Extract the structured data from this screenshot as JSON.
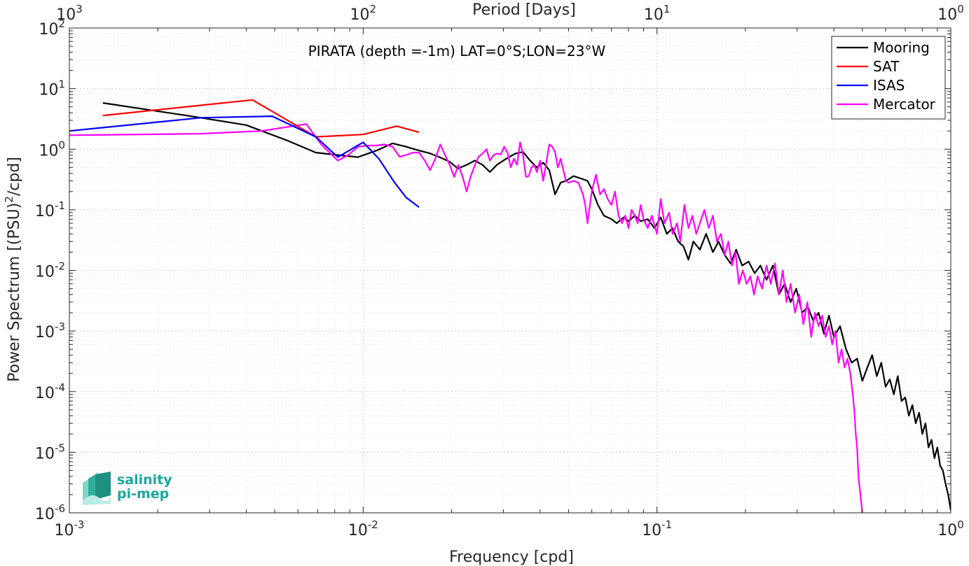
{
  "chart_data": {
    "type": "line",
    "title": "PIRATA (depth =-1m) LAT=0°S;LON=23°W",
    "xlabel": "Frequency [cpd]",
    "ylabel_main": "Power Spectrum [(PSU)",
    "ylabel_sup": "2",
    "ylabel_tail": "/cpd]",
    "top_xlabel": "Period [Days]",
    "xscale": "log",
    "yscale": "log",
    "xlim": [
      0.001,
      1
    ],
    "ylim": [
      1e-06,
      100
    ],
    "grid": true,
    "minor_grid": true,
    "legend_position": "top-right",
    "x_ticks": [
      {
        "b": "10",
        "e": "-3"
      },
      {
        "b": "10",
        "e": "-2"
      },
      {
        "b": "10",
        "e": "-1"
      },
      {
        "b": "10",
        "e": "0"
      }
    ],
    "top_ticks": [
      {
        "b": "10",
        "e": "3"
      },
      {
        "b": "10",
        "e": "2"
      },
      {
        "b": "10",
        "e": "1"
      },
      {
        "b": "10",
        "e": "0"
      }
    ],
    "y_ticks": [
      {
        "b": "10",
        "e": "-6"
      },
      {
        "b": "10",
        "e": "-5"
      },
      {
        "b": "10",
        "e": "-4"
      },
      {
        "b": "10",
        "e": "-3"
      },
      {
        "b": "10",
        "e": "-2"
      },
      {
        "b": "10",
        "e": "-1"
      },
      {
        "b": "10",
        "e": "0"
      },
      {
        "b": "10",
        "e": "1"
      },
      {
        "b": "10",
        "e": "2"
      }
    ],
    "logo": {
      "line1": "salinity",
      "line2": "pi-mep"
    },
    "series": [
      {
        "name": "Mooring",
        "color": "#000000",
        "points": [
          [
            0.0013,
            5.8
          ],
          [
            0.0027,
            3.4
          ],
          [
            0.004,
            2.5
          ],
          [
            0.0055,
            1.4
          ],
          [
            0.0069,
            0.88
          ],
          [
            0.0082,
            0.8
          ],
          [
            0.0096,
            0.74
          ],
          [
            0.0111,
            0.95
          ],
          [
            0.0126,
            1.25
          ],
          [
            0.014,
            1.1
          ],
          [
            0.0155,
            0.95
          ],
          [
            0.0168,
            0.86
          ],
          [
            0.0182,
            0.74
          ],
          [
            0.0197,
            0.62
          ],
          [
            0.021,
            0.48
          ],
          [
            0.0225,
            0.55
          ],
          [
            0.024,
            0.65
          ],
          [
            0.0255,
            0.55
          ],
          [
            0.027,
            0.42
          ],
          [
            0.0285,
            0.55
          ],
          [
            0.03,
            0.65
          ],
          [
            0.0315,
            0.75
          ],
          [
            0.033,
            0.85
          ],
          [
            0.035,
            0.9
          ],
          [
            0.037,
            0.65
          ],
          [
            0.039,
            0.5
          ],
          [
            0.041,
            0.6
          ],
          [
            0.043,
            0.45
          ],
          [
            0.045,
            0.18
          ],
          [
            0.047,
            0.28
          ],
          [
            0.049,
            0.3
          ],
          [
            0.052,
            0.36
          ],
          [
            0.055,
            0.33
          ],
          [
            0.058,
            0.3
          ],
          [
            0.06,
            0.22
          ],
          [
            0.063,
            0.12
          ],
          [
            0.066,
            0.08
          ],
          [
            0.07,
            0.07
          ],
          [
            0.073,
            0.06
          ],
          [
            0.077,
            0.075
          ],
          [
            0.08,
            0.065
          ],
          [
            0.084,
            0.08
          ],
          [
            0.088,
            0.065
          ],
          [
            0.093,
            0.07
          ],
          [
            0.098,
            0.05
          ],
          [
            0.103,
            0.075
          ],
          [
            0.108,
            0.04
          ],
          [
            0.113,
            0.05
          ],
          [
            0.118,
            0.03
          ],
          [
            0.123,
            0.025
          ],
          [
            0.128,
            0.015
          ],
          [
            0.133,
            0.03
          ],
          [
            0.14,
            0.022
          ],
          [
            0.147,
            0.04
          ],
          [
            0.155,
            0.02
          ],
          [
            0.162,
            0.03
          ],
          [
            0.17,
            0.018
          ],
          [
            0.178,
            0.013
          ],
          [
            0.186,
            0.022
          ],
          [
            0.195,
            0.012
          ],
          [
            0.205,
            0.014
          ],
          [
            0.215,
            0.009
          ],
          [
            0.225,
            0.012
          ],
          [
            0.236,
            0.007
          ],
          [
            0.248,
            0.012
          ],
          [
            0.26,
            0.004
          ],
          [
            0.272,
            0.006
          ],
          [
            0.285,
            0.003
          ],
          [
            0.298,
            0.005
          ],
          [
            0.312,
            0.002
          ],
          [
            0.326,
            0.0025
          ],
          [
            0.34,
            0.0015
          ],
          [
            0.355,
            0.002
          ],
          [
            0.37,
            0.0009
          ],
          [
            0.385,
            0.0018
          ],
          [
            0.4,
            0.0008
          ],
          [
            0.42,
            0.0012
          ],
          [
            0.44,
            0.0005
          ],
          [
            0.46,
            0.0003
          ],
          [
            0.48,
            0.00035
          ],
          [
            0.5,
            0.00015
          ],
          [
            0.52,
            0.00025
          ],
          [
            0.54,
            0.0004
          ],
          [
            0.56,
            0.00018
          ],
          [
            0.58,
            0.0003
          ],
          [
            0.6,
            0.00012
          ],
          [
            0.62,
            0.00016
          ],
          [
            0.64,
            9e-05
          ],
          [
            0.66,
            0.00018
          ],
          [
            0.68,
            7e-05
          ],
          [
            0.7,
            8e-05
          ],
          [
            0.72,
            4e-05
          ],
          [
            0.74,
            6e-05
          ],
          [
            0.76,
            3e-05
          ],
          [
            0.78,
            4.5e-05
          ],
          [
            0.8,
            2e-05
          ],
          [
            0.82,
            3e-05
          ],
          [
            0.84,
            1.2e-05
          ],
          [
            0.86,
            1.6e-05
          ],
          [
            0.88,
            8e-06
          ],
          [
            0.9,
            1.2e-05
          ],
          [
            0.92,
            6e-06
          ],
          [
            0.94,
            5e-06
          ],
          [
            0.96,
            3e-06
          ],
          [
            0.98,
            2e-06
          ],
          [
            1.0,
            1.1e-06
          ]
        ]
      },
      {
        "name": "SAT",
        "color": "#ff0000",
        "points": [
          [
            0.0013,
            3.6
          ],
          [
            0.0042,
            6.5
          ],
          [
            0.0069,
            1.6
          ],
          [
            0.01,
            1.75
          ],
          [
            0.013,
            2.4
          ],
          [
            0.0155,
            1.9
          ]
        ]
      },
      {
        "name": "ISAS",
        "color": "#0000ff",
        "points": [
          [
            0.001,
            2.0
          ],
          [
            0.0028,
            3.3
          ],
          [
            0.0049,
            3.5
          ],
          [
            0.0069,
            1.6
          ],
          [
            0.0082,
            0.74
          ],
          [
            0.01,
            1.3
          ],
          [
            0.0113,
            0.7
          ],
          [
            0.0128,
            0.28
          ],
          [
            0.014,
            0.16
          ],
          [
            0.0155,
            0.11
          ]
        ]
      },
      {
        "name": "Mercator",
        "color": "#ff00ff",
        "points": [
          [
            0.001,
            1.7
          ],
          [
            0.0028,
            1.8
          ],
          [
            0.0045,
            2.0
          ],
          [
            0.0064,
            2.6
          ],
          [
            0.0072,
            1.2
          ],
          [
            0.0082,
            0.65
          ],
          [
            0.0089,
            0.8
          ],
          [
            0.0096,
            1.1
          ],
          [
            0.0104,
            1.15
          ],
          [
            0.0111,
            1.15
          ],
          [
            0.0118,
            1.2
          ],
          [
            0.0126,
            1.1
          ],
          [
            0.0133,
            0.75
          ],
          [
            0.014,
            0.8
          ],
          [
            0.0148,
            0.88
          ],
          [
            0.0155,
            0.88
          ],
          [
            0.0162,
            0.65
          ],
          [
            0.0169,
            0.45
          ],
          [
            0.0176,
            0.7
          ],
          [
            0.0183,
            1.2
          ],
          [
            0.019,
            0.8
          ],
          [
            0.0197,
            0.55
          ],
          [
            0.0204,
            0.35
          ],
          [
            0.0211,
            0.55
          ],
          [
            0.0218,
            0.35
          ],
          [
            0.0225,
            0.2
          ],
          [
            0.0232,
            0.35
          ],
          [
            0.024,
            0.55
          ],
          [
            0.0247,
            0.75
          ],
          [
            0.0255,
            0.85
          ],
          [
            0.0263,
            1.0
          ],
          [
            0.027,
            0.65
          ],
          [
            0.0278,
            0.8
          ],
          [
            0.0286,
            0.85
          ],
          [
            0.0294,
            0.82
          ],
          [
            0.0302,
            1.1
          ],
          [
            0.031,
            0.88
          ],
          [
            0.0318,
            0.5
          ],
          [
            0.0326,
            0.7
          ],
          [
            0.0334,
            0.55
          ],
          [
            0.0342,
            1.3
          ],
          [
            0.035,
            0.8
          ],
          [
            0.0358,
            0.35
          ],
          [
            0.0366,
            0.36
          ],
          [
            0.0374,
            0.5
          ],
          [
            0.0382,
            0.55
          ],
          [
            0.039,
            0.42
          ],
          [
            0.04,
            0.65
          ],
          [
            0.041,
            0.3
          ],
          [
            0.042,
            0.6
          ],
          [
            0.043,
            1.2
          ],
          [
            0.044,
            1.1
          ],
          [
            0.045,
            0.9
          ],
          [
            0.046,
            0.5
          ],
          [
            0.047,
            0.7
          ],
          [
            0.048,
            0.45
          ],
          [
            0.049,
            0.3
          ],
          [
            0.05,
            0.28
          ],
          [
            0.052,
            0.3
          ],
          [
            0.054,
            0.28
          ],
          [
            0.056,
            0.18
          ],
          [
            0.057,
            0.12
          ],
          [
            0.058,
            0.06
          ],
          [
            0.06,
            0.2
          ],
          [
            0.062,
            0.38
          ],
          [
            0.064,
            0.18
          ],
          [
            0.066,
            0.22
          ],
          [
            0.068,
            0.15
          ],
          [
            0.07,
            0.12
          ],
          [
            0.072,
            0.2
          ],
          [
            0.074,
            0.08
          ],
          [
            0.076,
            0.06
          ],
          [
            0.078,
            0.08
          ],
          [
            0.08,
            0.05
          ],
          [
            0.082,
            0.1
          ],
          [
            0.084,
            0.08
          ],
          [
            0.086,
            0.06
          ],
          [
            0.088,
            0.12
          ],
          [
            0.09,
            0.07
          ],
          [
            0.093,
            0.05
          ],
          [
            0.096,
            0.08
          ],
          [
            0.1,
            0.04
          ],
          [
            0.103,
            0.15
          ],
          [
            0.106,
            0.06
          ],
          [
            0.11,
            0.09
          ],
          [
            0.113,
            0.04
          ],
          [
            0.117,
            0.06
          ],
          [
            0.12,
            0.03
          ],
          [
            0.124,
            0.12
          ],
          [
            0.128,
            0.05
          ],
          [
            0.132,
            0.08
          ],
          [
            0.136,
            0.04
          ],
          [
            0.14,
            0.06
          ],
          [
            0.145,
            0.1
          ],
          [
            0.15,
            0.05
          ],
          [
            0.155,
            0.08
          ],
          [
            0.16,
            0.03
          ],
          [
            0.165,
            0.04
          ],
          [
            0.17,
            0.018
          ],
          [
            0.175,
            0.03
          ],
          [
            0.18,
            0.012
          ],
          [
            0.185,
            0.02
          ],
          [
            0.19,
            0.006
          ],
          [
            0.196,
            0.01
          ],
          [
            0.202,
            0.006
          ],
          [
            0.208,
            0.008
          ],
          [
            0.214,
            0.004
          ],
          [
            0.22,
            0.008
          ],
          [
            0.228,
            0.005
          ],
          [
            0.236,
            0.012
          ],
          [
            0.244,
            0.006
          ],
          [
            0.252,
            0.013
          ],
          [
            0.26,
            0.004
          ],
          [
            0.268,
            0.01
          ],
          [
            0.276,
            0.003
          ],
          [
            0.285,
            0.006
          ],
          [
            0.295,
            0.002
          ],
          [
            0.305,
            0.004
          ],
          [
            0.315,
            0.0013
          ],
          [
            0.325,
            0.003
          ],
          [
            0.335,
            0.0008
          ],
          [
            0.345,
            0.002
          ],
          [
            0.355,
            0.0012
          ],
          [
            0.365,
            0.0018
          ],
          [
            0.375,
            0.0008
          ],
          [
            0.385,
            0.0012
          ],
          [
            0.395,
            0.0006
          ],
          [
            0.405,
            0.001
          ],
          [
            0.415,
            0.0003
          ],
          [
            0.425,
            0.0005
          ],
          [
            0.435,
            0.00025
          ],
          [
            0.445,
            0.00035
          ],
          [
            0.455,
            0.0002
          ],
          [
            0.465,
            8e-05
          ],
          [
            0.47,
            4.5e-05
          ],
          [
            0.475,
            2e-05
          ],
          [
            0.48,
            1.2e-05
          ],
          [
            0.485,
            4e-06
          ],
          [
            0.49,
            2.5e-06
          ],
          [
            0.5,
            1e-06
          ]
        ]
      }
    ]
  }
}
